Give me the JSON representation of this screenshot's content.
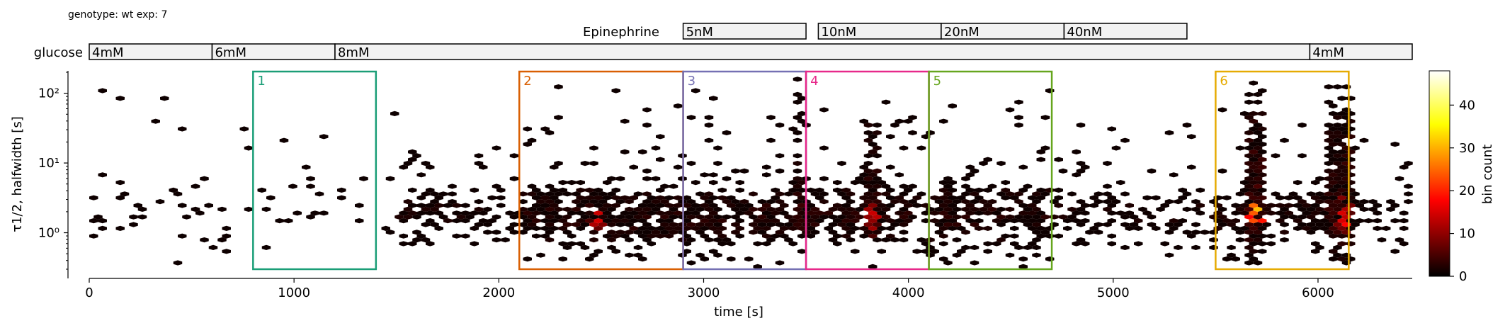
{
  "header": {
    "experiment_label": "genotype: wt  exp: 7"
  },
  "annotations": {
    "epinephrine": {
      "label": "Epinephrine",
      "segments": [
        {
          "label": "5nM",
          "start": 2900,
          "end": 3500
        },
        {
          "label": "10nM",
          "start": 3560,
          "end": 4160
        },
        {
          "label": "20nM",
          "start": 4160,
          "end": 4760
        },
        {
          "label": "40nM",
          "start": 4760,
          "end": 5360
        }
      ]
    },
    "glucose": {
      "label": "glucose",
      "segments": [
        {
          "label": "4mM",
          "start": 0,
          "end": 600
        },
        {
          "label": "6mM",
          "start": 600,
          "end": 1200
        },
        {
          "label": "8mM",
          "start": 1200,
          "end": 5960
        },
        {
          "label": "4mM",
          "start": 5960,
          "end": 6460
        }
      ]
    }
  },
  "chart_data": {
    "type": "heatmap",
    "subtype": "hexbin",
    "title": "",
    "xlabel": "time [s]",
    "ylabel": "τ1/2, halfwidth [s]",
    "xlim": [
      0,
      6460
    ],
    "ylim": [
      0.3,
      200
    ],
    "yscale": "log",
    "xticks": [
      0,
      1000,
      2000,
      3000,
      4000,
      5000,
      6000
    ],
    "xtick_labels": [
      "0",
      "1000",
      "2000",
      "3000",
      "4000",
      "5000",
      "6000"
    ],
    "yticks": [
      1,
      10,
      100
    ],
    "ytick_labels": [
      "10⁰",
      "10¹",
      "10²"
    ],
    "colorbar": {
      "label": "bin count",
      "range": [
        0,
        48
      ],
      "ticks": [
        0,
        10,
        20,
        30,
        40
      ],
      "colormap": "hot"
    },
    "regions": [
      {
        "label": "1",
        "x0": 800,
        "x1": 1400,
        "color": "#1b9e77"
      },
      {
        "label": "2",
        "x0": 2100,
        "x1": 2900,
        "color": "#d95f02"
      },
      {
        "label": "3",
        "x0": 2900,
        "x1": 3500,
        "color": "#7570b3"
      },
      {
        "label": "4",
        "x0": 3500,
        "x1": 4100,
        "color": "#e7298a"
      },
      {
        "label": "5",
        "x0": 4100,
        "x1": 4700,
        "color": "#66a61e"
      },
      {
        "label": "6",
        "x0": 5500,
        "x1": 6150,
        "color": "#e6ab02"
      }
    ],
    "hotspots": [
      {
        "x": 5700,
        "y": 1.8,
        "count": 48
      },
      {
        "x": 6120,
        "y": 1.8,
        "count": 30
      },
      {
        "x": 3820,
        "y": 1.8,
        "count": 22
      },
      {
        "x": 2480,
        "y": 1.7,
        "count": 18
      }
    ]
  }
}
